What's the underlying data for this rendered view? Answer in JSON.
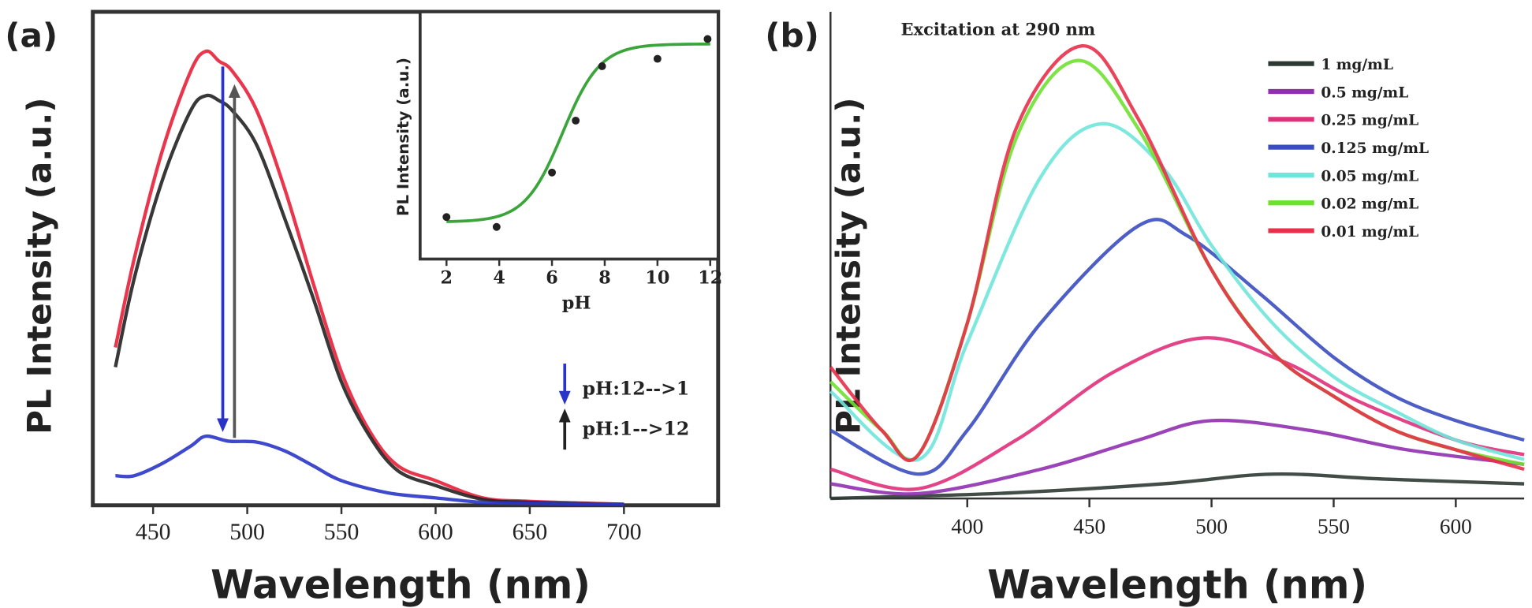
{
  "chart_data": [
    {
      "panel_label": "(a)",
      "type": "line",
      "xlabel": "Wavelength (nm)",
      "ylabel": "PL Intensity (a.u.)",
      "xlim": [
        418,
        750
      ],
      "ylim": [
        0,
        1
      ],
      "xticks": [
        450,
        500,
        550,
        600,
        650,
        700
      ],
      "grid": false,
      "series": [
        {
          "color": "#e8203a",
          "x": [
            430,
            440,
            455,
            470,
            478,
            485,
            492,
            505,
            520,
            535,
            550,
            565,
            580,
            600,
            625,
            650,
            700
          ],
          "y": [
            0.32,
            0.5,
            0.72,
            0.88,
            0.92,
            0.9,
            0.88,
            0.8,
            0.64,
            0.45,
            0.27,
            0.15,
            0.08,
            0.05,
            0.015,
            0.008,
            0.002
          ]
        },
        {
          "color": "#222222",
          "x": [
            430,
            440,
            455,
            470,
            478,
            485,
            492,
            505,
            520,
            535,
            550,
            565,
            580,
            600,
            625,
            650,
            700
          ],
          "y": [
            0.28,
            0.46,
            0.66,
            0.8,
            0.83,
            0.82,
            0.8,
            0.73,
            0.58,
            0.42,
            0.25,
            0.14,
            0.07,
            0.04,
            0.012,
            0.006,
            0.002
          ]
        },
        {
          "color": "#2a35c8",
          "x": [
            430,
            440,
            455,
            470,
            478,
            490,
            505,
            520,
            535,
            550,
            575,
            600,
            625,
            650,
            700
          ],
          "y": [
            0.06,
            0.06,
            0.085,
            0.12,
            0.14,
            0.13,
            0.128,
            0.11,
            0.08,
            0.05,
            0.025,
            0.015,
            0.006,
            0.004,
            0.002
          ]
        }
      ],
      "arrows": [
        {
          "label": "pH:12-->1",
          "color": "#2a35c8",
          "direction": "down"
        },
        {
          "label": "pH:1-->12",
          "color": "#222222",
          "direction": "up"
        }
      ],
      "inset": {
        "type": "scatter+line",
        "xlabel": "pH",
        "ylabel": "PL Intensity (a.u.)",
        "xlim": [
          1,
          12.3
        ],
        "ylim": [
          0,
          1
        ],
        "xticks": [
          2,
          4,
          6,
          8,
          10,
          12
        ],
        "points": {
          "x": [
            2,
            3.9,
            6,
            6.9,
            7.9,
            10,
            11.9
          ],
          "y": [
            0.17,
            0.13,
            0.35,
            0.56,
            0.78,
            0.81,
            0.89
          ]
        },
        "fit_color": "#3aa53a"
      }
    },
    {
      "panel_label": "(b)",
      "type": "line",
      "annotation": "Excitation at 290 nm",
      "xlabel": "Wavelength (nm)",
      "ylabel": "PL Intensity (a.u.)",
      "xlim": [
        344,
        628
      ],
      "ylim": [
        0,
        1
      ],
      "xticks": [
        400,
        450,
        500,
        550,
        600
      ],
      "grid": false,
      "legend_position": "top-right",
      "series": [
        {
          "name": "1 mg/mL",
          "color": "#2d3a33",
          "x": [
            344,
            380,
            420,
            480,
            525,
            570,
            628
          ],
          "y": [
            0.0,
            0.005,
            0.012,
            0.03,
            0.05,
            0.04,
            0.03
          ]
        },
        {
          "name": "0.5 mg/mL",
          "color": "#9030b0",
          "x": [
            344,
            380,
            430,
            470,
            500,
            540,
            580,
            628
          ],
          "y": [
            0.03,
            0.01,
            0.06,
            0.12,
            0.16,
            0.14,
            0.1,
            0.07
          ]
        },
        {
          "name": "0.25 mg/mL",
          "color": "#e0307a",
          "x": [
            344,
            380,
            420,
            460,
            497,
            530,
            560,
            600,
            628
          ],
          "y": [
            0.06,
            0.02,
            0.12,
            0.26,
            0.33,
            0.28,
            0.2,
            0.12,
            0.09
          ]
        },
        {
          "name": "0.125 mg/mL",
          "color": "#3a4cc0",
          "x": [
            344,
            380,
            400,
            430,
            470,
            490,
            520,
            550,
            575,
            600,
            628
          ],
          "y": [
            0.14,
            0.05,
            0.14,
            0.36,
            0.56,
            0.54,
            0.42,
            0.29,
            0.21,
            0.16,
            0.12
          ]
        },
        {
          "name": "0.05 mg/mL",
          "color": "#70e6da",
          "x": [
            344,
            380,
            400,
            430,
            455,
            480,
            500,
            525,
            550,
            575,
            600,
            628
          ],
          "y": [
            0.22,
            0.08,
            0.32,
            0.66,
            0.77,
            0.68,
            0.52,
            0.36,
            0.25,
            0.18,
            0.12,
            0.08
          ]
        },
        {
          "name": "0.02 mg/mL",
          "color": "#70e030",
          "x": [
            344,
            365,
            380,
            400,
            420,
            445,
            470,
            500,
            525,
            550,
            575,
            600,
            628
          ],
          "y": [
            0.24,
            0.14,
            0.09,
            0.36,
            0.74,
            0.9,
            0.76,
            0.47,
            0.3,
            0.21,
            0.14,
            0.1,
            0.07
          ]
        },
        {
          "name": "0.01 mg/mL",
          "color": "#e8304a",
          "x": [
            344,
            365,
            380,
            400,
            420,
            447,
            470,
            500,
            525,
            550,
            575,
            600,
            628
          ],
          "y": [
            0.27,
            0.14,
            0.09,
            0.36,
            0.76,
            0.93,
            0.78,
            0.47,
            0.3,
            0.21,
            0.14,
            0.1,
            0.06
          ]
        }
      ]
    }
  ]
}
